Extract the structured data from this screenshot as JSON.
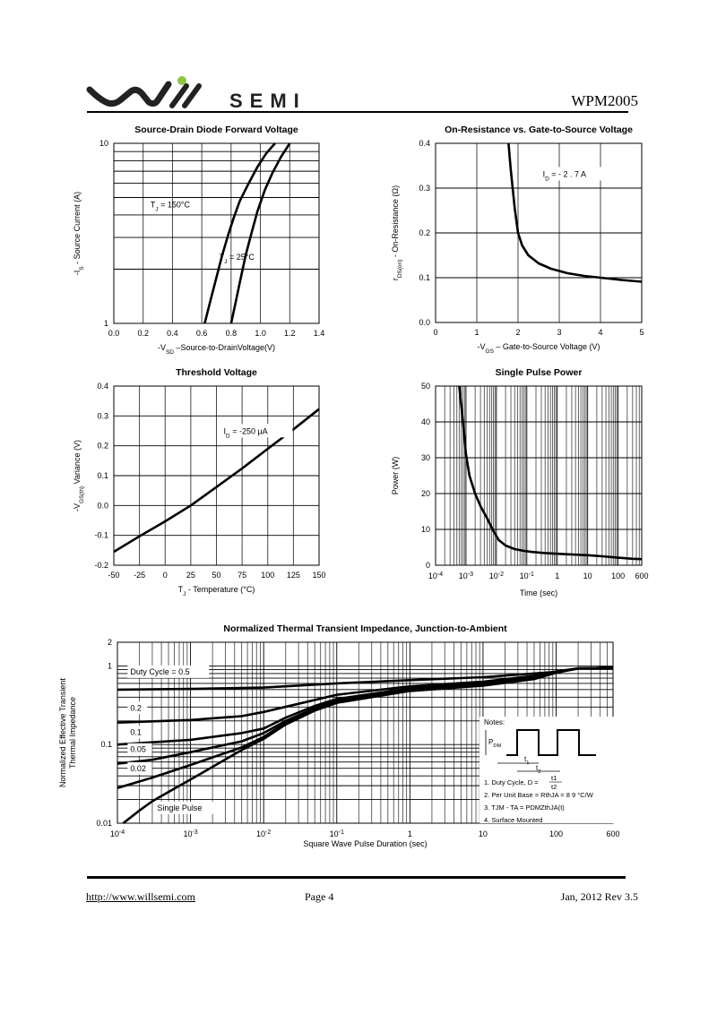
{
  "header": {
    "brand_text": "SEMI",
    "part_number": "WPM2005",
    "brand_accent": "#8dc63f"
  },
  "footer": {
    "url": "http://www.willsemi.com",
    "page": "Page  4",
    "revision": "Jan,  2012 Rev 3.5"
  },
  "chart_data": [
    {
      "id": "source-drain",
      "type": "line",
      "title": "Source-Drain Diode Forward Voltage",
      "xlabel": "-VSD –Source-to-DrainVoltage(V)",
      "xlabel_parts": {
        "pre": "-V",
        "sub": "SD",
        "post": " –Source-to-DrainVoltage(V)"
      },
      "ylabel": "-IS - Source Current (A)",
      "ylabel_parts": {
        "pre": "-I",
        "sub": "S",
        "post": "  -  Source Current (A)"
      },
      "xlim": [
        0,
        1.4
      ],
      "ylim": [
        1,
        10
      ],
      "yscale": "log",
      "x_ticks": [
        "0.0",
        "0.2",
        "0.4",
        "0.6",
        "0.8",
        "1.0",
        "1.2",
        "1.4"
      ],
      "y_ticks": [
        "1",
        "10"
      ],
      "grid": true,
      "series": [
        {
          "name": "TJ = 150°C",
          "label_pre": "T",
          "label_sub": "J",
          "label_post": " = 150°C",
          "x": [
            0.62,
            0.66,
            0.7,
            0.74,
            0.78,
            0.82,
            0.86,
            0.92,
            0.98,
            1.04,
            1.1
          ],
          "y": [
            1.0,
            1.35,
            1.8,
            2.4,
            3.1,
            3.9,
            4.8,
            6.0,
            7.4,
            8.8,
            10.0
          ]
        },
        {
          "name": "TJ = 25°C",
          "label_pre": "T",
          "label_sub": "J",
          "label_post": " = 25°C",
          "x": [
            0.8,
            0.83,
            0.86,
            0.9,
            0.94,
            0.98,
            1.03,
            1.08,
            1.14,
            1.2
          ],
          "y": [
            1.0,
            1.3,
            1.7,
            2.4,
            3.2,
            4.2,
            5.5,
            6.8,
            8.4,
            10.0
          ]
        }
      ]
    },
    {
      "id": "on-resistance",
      "type": "line",
      "title": "On-Resistance vs. Gate-to-Source Voltage",
      "xlabel": "-VGS – Gate-to-Source Voltage (V)",
      "xlabel_parts": {
        "pre": "-V",
        "sub": "GS",
        "post": " – Gate-to-Source Voltage (V)"
      },
      "ylabel": "rDS(on) - On-Resistance (Ω)",
      "ylabel_parts": {
        "pre": "r",
        "sub": "DS(on)",
        "post": "   -  On-Resistance (Ω)"
      },
      "xlim": [
        0,
        5
      ],
      "ylim": [
        0,
        0.4
      ],
      "x_ticks": [
        "0",
        "1",
        "2",
        "3",
        "4",
        "5"
      ],
      "y_ticks": [
        "0.0",
        "0.1",
        "0.2",
        "0.3",
        "0.4"
      ],
      "grid": true,
      "annotation": {
        "pre": "I",
        "sub": "D",
        "post": " = - 2 . 7 A"
      },
      "series": [
        {
          "name": "ID = -2.7 A",
          "x": [
            1.77,
            1.82,
            1.87,
            1.92,
            2.0,
            2.1,
            2.25,
            2.5,
            2.8,
            3.2,
            3.6,
            4.0,
            4.5,
            5.0
          ],
          "y": [
            0.4,
            0.345,
            0.3,
            0.255,
            0.2,
            0.172,
            0.15,
            0.132,
            0.12,
            0.11,
            0.104,
            0.1,
            0.095,
            0.091
          ]
        }
      ]
    },
    {
      "id": "threshold",
      "type": "line",
      "title": "Threshold Voltage",
      "xlabel": "TJ - Temperature (°C)",
      "xlabel_parts": {
        "pre": "T",
        "sub": "J",
        "post": " - Temperature (°C)"
      },
      "ylabel": "-VGS(th) Variance (V)",
      "ylabel_parts": {
        "pre": "-V",
        "sub": "GS(th)",
        "post": "  Variance (V)"
      },
      "xlim": [
        -50,
        150
      ],
      "ylim": [
        -0.2,
        0.4
      ],
      "x_ticks": [
        "-50",
        "-25",
        "0",
        "25",
        "50",
        "75",
        "100",
        "125",
        "150"
      ],
      "y_ticks": [
        "-0.2",
        "-0.1",
        "0.0",
        "0.1",
        "0.2",
        "0.3",
        "0.4"
      ],
      "grid": true,
      "annotation": {
        "pre": "I",
        "sub": "D",
        "post": " = -250 µA"
      },
      "series": [
        {
          "name": "ID = -250 µA",
          "x": [
            -50,
            -25,
            0,
            25,
            50,
            75,
            100,
            125,
            150
          ],
          "y": [
            -0.155,
            -0.103,
            -0.053,
            0.0,
            0.062,
            0.124,
            0.19,
            0.255,
            0.323
          ]
        }
      ]
    },
    {
      "id": "single-pulse",
      "type": "line",
      "title": "Single Pulse Power",
      "xlabel": "Time (sec)",
      "ylabel": "Power (W)",
      "xscale": "log",
      "xlim": [
        0.0001,
        600
      ],
      "ylim": [
        0,
        50
      ],
      "x_ticks": [
        {
          "base": "10",
          "exp": "-4",
          "v": 0.0001
        },
        {
          "base": "10",
          "exp": "-3",
          "v": 0.001
        },
        {
          "base": "10",
          "exp": "-2",
          "v": 0.01
        },
        {
          "base": "10",
          "exp": "-1",
          "v": 0.1
        },
        {
          "base": "1",
          "exp": "",
          "v": 1
        },
        {
          "base": "10",
          "exp": "",
          "v": 10
        },
        {
          "base": "100",
          "exp": "",
          "v": 100
        },
        {
          "base": "600",
          "exp": "",
          "v": 600
        }
      ],
      "y_ticks": [
        "0",
        "10",
        "20",
        "30",
        "40",
        "50"
      ],
      "grid": true,
      "series": [
        {
          "name": "Single Pulse",
          "x": [
            0.0006,
            0.0008,
            0.001,
            0.0013,
            0.002,
            0.003,
            0.005,
            0.008,
            0.012,
            0.02,
            0.04,
            0.08,
            0.15,
            0.4,
            1,
            3,
            10,
            30,
            100,
            300,
            600
          ],
          "y": [
            50,
            40,
            31,
            25,
            20,
            16.5,
            13,
            9.5,
            7.0,
            5.5,
            4.5,
            4.0,
            3.7,
            3.4,
            3.2,
            3.0,
            2.8,
            2.5,
            2.1,
            1.8,
            1.7
          ]
        }
      ]
    },
    {
      "id": "thermal-impedance",
      "type": "line",
      "title": "Normalized Thermal Transient Impedance, Junction-to-Ambient",
      "xlabel": "Square Wave Pulse Duration (sec)",
      "ylabel": "Normalized Effective Transient Thermal Impedance",
      "ylabel_lines": [
        "Normalized Effective Transient",
        "Thermal Impedance"
      ],
      "xscale": "log",
      "yscale": "log",
      "xlim": [
        0.0001,
        600
      ],
      "ylim": [
        0.01,
        2
      ],
      "x_ticks": [
        {
          "base": "10",
          "exp": "-4",
          "v": 0.0001
        },
        {
          "base": "10",
          "exp": "-3",
          "v": 0.001
        },
        {
          "base": "10",
          "exp": "-2",
          "v": 0.01
        },
        {
          "base": "10",
          "exp": "-1",
          "v": 0.1
        },
        {
          "base": "1",
          "exp": "",
          "v": 1
        },
        {
          "base": "10",
          "exp": "",
          "v": 10
        },
        {
          "base": "100",
          "exp": "",
          "v": 100
        },
        {
          "base": "600",
          "exp": "",
          "v": 600
        }
      ],
      "y_ticks": [
        {
          "label": "0.01",
          "v": 0.01
        },
        {
          "label": "0.1",
          "v": 0.1
        },
        {
          "label": "1",
          "v": 1
        },
        {
          "label": "2",
          "v": 2
        }
      ],
      "grid": true,
      "series": [
        {
          "name": "Duty Cycle = 0.5",
          "label_v": [
            0.00015,
            0.78
          ],
          "x": [
            0.0001,
            0.001,
            0.01,
            0.1,
            1,
            10,
            100,
            200,
            600
          ],
          "y": [
            0.5,
            0.51,
            0.53,
            0.6,
            0.66,
            0.72,
            0.84,
            0.93,
            0.95
          ]
        },
        {
          "name": "0.2",
          "label_v": [
            0.00015,
            0.27
          ],
          "x": [
            0.0001,
            0.001,
            0.005,
            0.01,
            0.03,
            0.1,
            1,
            10,
            50,
            100,
            200,
            600
          ],
          "y": [
            0.19,
            0.205,
            0.23,
            0.26,
            0.33,
            0.43,
            0.55,
            0.63,
            0.75,
            0.85,
            0.93,
            0.95
          ]
        },
        {
          "name": "0.1",
          "label_v": [
            0.00015,
            0.133
          ],
          "x": [
            0.0001,
            0.001,
            0.005,
            0.01,
            0.02,
            0.05,
            0.1,
            1,
            10,
            50,
            100,
            200,
            600
          ],
          "y": [
            0.1,
            0.115,
            0.14,
            0.16,
            0.22,
            0.31,
            0.38,
            0.52,
            0.6,
            0.72,
            0.84,
            0.93,
            0.95
          ]
        },
        {
          "name": "0.05",
          "label_v": [
            0.00015,
            0.08
          ],
          "x": [
            0.0001,
            0.0003,
            0.001,
            0.005,
            0.01,
            0.02,
            0.05,
            0.1,
            1,
            10,
            50,
            100,
            200,
            600
          ],
          "y": [
            0.057,
            0.064,
            0.08,
            0.11,
            0.14,
            0.2,
            0.29,
            0.36,
            0.5,
            0.58,
            0.7,
            0.83,
            0.93,
            0.95
          ]
        },
        {
          "name": "0.02",
          "label_v": [
            0.00015,
            0.046
          ],
          "x": [
            0.0001,
            0.0003,
            0.001,
            0.005,
            0.01,
            0.02,
            0.05,
            0.1,
            1,
            10,
            50,
            100,
            200,
            600
          ],
          "y": [
            0.028,
            0.038,
            0.055,
            0.092,
            0.125,
            0.19,
            0.28,
            0.35,
            0.49,
            0.57,
            0.69,
            0.82,
            0.93,
            0.95
          ]
        },
        {
          "name": "Single Pulse",
          "label_v": [
            0.00035,
            0.0145
          ],
          "x": [
            0.00012,
            0.0002,
            0.0003,
            0.0005,
            0.001,
            0.002,
            0.005,
            0.01,
            0.02,
            0.05,
            0.1,
            1,
            10,
            50,
            100,
            200,
            600
          ],
          "y": [
            0.01,
            0.0145,
            0.019,
            0.025,
            0.036,
            0.052,
            0.085,
            0.118,
            0.18,
            0.27,
            0.34,
            0.48,
            0.56,
            0.68,
            0.82,
            0.93,
            0.95
          ]
        }
      ],
      "notes": {
        "heading": "Notes:",
        "pdm": {
          "pre": "P",
          "sub": "DM"
        },
        "t1": {
          "pre": "t",
          "sub": "1"
        },
        "t2": {
          "pre": "t",
          "sub": "2"
        },
        "items": [
          {
            "pre": "1. Duty Cycle, D = ",
            "frac_num": "t1",
            "frac_den": "t2"
          },
          {
            "text": "2. Per Unit Base = RthJA = 8 9 °C/W"
          },
          {
            "text": "3. TJM - TA = PDMZthJA(t)"
          },
          {
            "text": "4. Surface Mounted"
          }
        ]
      }
    }
  ]
}
